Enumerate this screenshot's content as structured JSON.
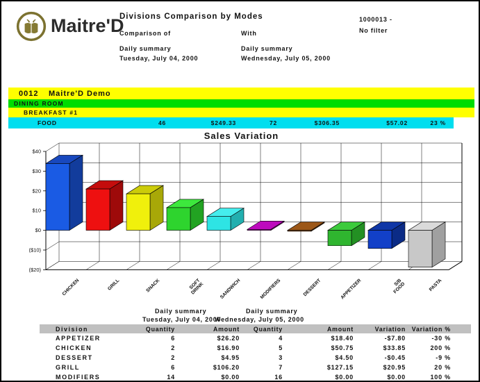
{
  "header": {
    "brand": "Maitre'D",
    "title": "Divisions Comparison by Modes",
    "comparison_of_label": "Comparison of",
    "with_label": "With",
    "left_summary_line1": "Daily summary",
    "left_summary_line2": "Tuesday, July 04, 2000",
    "right_summary_line1": "Daily summary",
    "right_summary_line2": "Wednesday, July 05, 2000",
    "report_number": "1000013 -",
    "filter": "No filter"
  },
  "bands": {
    "restaurant_code": "0012",
    "restaurant_name": "Maitre'D Demo",
    "room": "DINING ROOM",
    "mode": "BREAKFAST #1",
    "division_total": {
      "label": "FOOD",
      "qty1": "46",
      "amount1": "$249.33",
      "qty2": "72",
      "amount2": "$306.35",
      "variation": "$57.02",
      "variation_pct": "23 %"
    }
  },
  "chart_data": {
    "type": "bar",
    "style": "3d",
    "title": "Sales Variation",
    "categories": [
      "CHICKEN",
      "GRILL",
      "SNACK",
      "SOFT\nDRINK",
      "SANDWICH",
      "MODIFIERS",
      "DESSERT",
      "APPETIZER",
      "S/B\nFOOD",
      "PASTA"
    ],
    "values": [
      33.85,
      20.95,
      18.5,
      11.5,
      7.0,
      0.0,
      -0.45,
      -7.8,
      -9.2,
      -18.7
    ],
    "ylim": [
      -20,
      40
    ],
    "y_ticks": [
      {
        "label": "$40",
        "value": 40
      },
      {
        "label": "$30",
        "value": 30
      },
      {
        "label": "$20",
        "value": 20
      },
      {
        "label": "$10",
        "value": 10
      },
      {
        "label": "$0",
        "value": 0
      },
      {
        "label": "($10)",
        "value": -10
      },
      {
        "label": "($20)",
        "value": -20
      }
    ],
    "bar_colors": [
      {
        "front": "#1A5BE4",
        "top": "#1848BE",
        "side": "#123C9C"
      },
      {
        "front": "#EE1010",
        "top": "#C40D0D",
        "side": "#9E0A0A"
      },
      {
        "front": "#F0F00C",
        "top": "#CCCC0A",
        "side": "#A8A808"
      },
      {
        "front": "#2ED42E",
        "top": "#3DE83D",
        "side": "#22A322"
      },
      {
        "front": "#2EE4E4",
        "top": "#45EDED",
        "side": "#22AFAF"
      },
      {
        "front": "#AA08AA",
        "top": "#BD0ABD",
        "side": "#800880"
      },
      {
        "front": "#8B4A12",
        "top": "#9C5718",
        "side": "#693809"
      },
      {
        "front": "#2FB52F",
        "top": "#3CCA3C",
        "side": "#239023"
      },
      {
        "front": "#1240C8",
        "top": "#0F36A6",
        "side": "#0B2B86"
      },
      {
        "front": "#C8C8C8",
        "top": "#DADADA",
        "side": "#A0A0A0"
      }
    ],
    "grid": true,
    "legend": "none"
  },
  "comparison_table": {
    "group1_line1": "Daily summary",
    "group1_line2": "Tuesday, July 04, 2000",
    "group2_line1": "Daily summary",
    "group2_line2": "Wednesday, July 05, 2000",
    "headers": [
      "Division",
      "Quantity",
      "Amount",
      "Quantity",
      "Amount",
      "Variation",
      "Variation %"
    ],
    "rows": [
      [
        "APPETIZER",
        "6",
        "$26.20",
        "4",
        "$18.40",
        "-$7.80",
        "-30 %"
      ],
      [
        "CHICKEN",
        "2",
        "$16.90",
        "5",
        "$50.75",
        "$33.85",
        "200 %"
      ],
      [
        "DESSERT",
        "2",
        "$4.95",
        "3",
        "$4.50",
        "-$0.45",
        "-9 %"
      ],
      [
        "GRILL",
        "6",
        "$106.20",
        "7",
        "$127.15",
        "$20.95",
        "20 %"
      ],
      [
        "MODIFIERS",
        "14",
        "$0.00",
        "16",
        "$0.00",
        "$0.00",
        "100 %"
      ]
    ]
  },
  "colors": {
    "band_yellow": "#FFFF00",
    "band_green": "#00DC00",
    "band_cyan": "#00DEEF",
    "table_header_bg": "#C0C0C0",
    "logo_olive": "#7C7230"
  }
}
